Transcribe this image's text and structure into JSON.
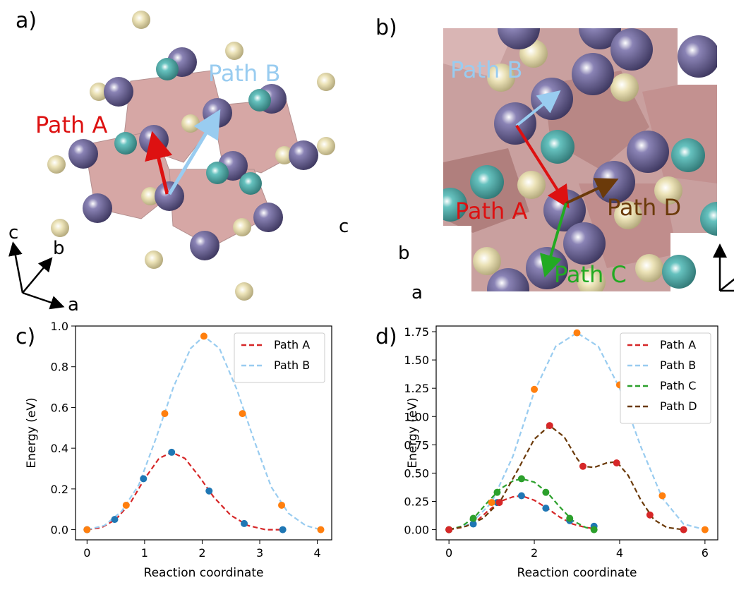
{
  "panels": {
    "a": {
      "label": "a)",
      "annotations": {
        "path_a": "Path A",
        "path_b": "Path B"
      },
      "axes": {
        "c": "c",
        "b": "b",
        "a": "a"
      },
      "colors": {
        "path_a": "#dd1111",
        "path_b": "#99ccf0"
      }
    },
    "b": {
      "label": "b)",
      "annotations": {
        "path_a": "Path A",
        "path_b": "Path B",
        "path_c": "Path C",
        "path_d": "Path D"
      },
      "axes": {
        "c": "c",
        "b": "b",
        "a": "a"
      },
      "colors": {
        "path_a": "#dd1111",
        "path_b": "#99ccf0",
        "path_c": "#22aa22",
        "path_d": "#6b3a0a"
      }
    },
    "c": {
      "label": "c)"
    },
    "d": {
      "label": "d)"
    }
  },
  "chart_data": [
    {
      "type": "line",
      "panel": "c",
      "xlabel": "Reaction coordinate",
      "ylabel": "Energy (eV)",
      "xlim": [
        -0.2,
        4.25
      ],
      "ylim": [
        -0.05,
        1.0
      ],
      "xticks": [
        0,
        1,
        2,
        3,
        4
      ],
      "yticks": [
        0.0,
        0.2,
        0.4,
        0.6,
        0.8,
        1.0
      ],
      "ytick_labels": [
        "0.0",
        "0.2",
        "0.4",
        "0.6",
        "0.8",
        "1.0"
      ],
      "legend_position": "top-right",
      "series": [
        {
          "name": "Path A",
          "color": "#d62728",
          "marker_color": "#1f77b4",
          "points_x": [
            0,
            0.48,
            0.98,
            1.47,
            2.12,
            2.73,
            3.4
          ],
          "points_y": [
            0,
            0.05,
            0.25,
            0.38,
            0.19,
            0.03,
            0.0
          ],
          "curve_x": [
            0,
            0.25,
            0.5,
            0.75,
            1.0,
            1.25,
            1.47,
            1.7,
            1.95,
            2.2,
            2.5,
            2.8,
            3.1,
            3.4
          ],
          "curve_y": [
            0,
            0.01,
            0.05,
            0.13,
            0.25,
            0.35,
            0.38,
            0.35,
            0.26,
            0.16,
            0.07,
            0.02,
            0.0,
            0.0
          ]
        },
        {
          "name": "Path B",
          "color": "#99ccf0",
          "marker_color": "#ff7f0e",
          "points_x": [
            0,
            0.68,
            1.35,
            2.03,
            2.7,
            3.38,
            4.06
          ],
          "points_y": [
            0,
            0.12,
            0.57,
            0.95,
            0.57,
            0.12,
            0.0
          ],
          "curve_x": [
            0,
            0.3,
            0.6,
            0.9,
            1.2,
            1.5,
            1.8,
            2.03,
            2.3,
            2.6,
            2.9,
            3.2,
            3.5,
            3.8,
            4.06
          ],
          "curve_y": [
            0,
            0.02,
            0.09,
            0.22,
            0.45,
            0.7,
            0.89,
            0.95,
            0.89,
            0.69,
            0.44,
            0.21,
            0.08,
            0.02,
            0.0
          ]
        }
      ]
    },
    {
      "type": "line",
      "panel": "d",
      "xlabel": "Reaction coordinate",
      "ylabel": "Energy (eV)",
      "xlim": [
        -0.3,
        6.3
      ],
      "ylim": [
        -0.09,
        1.8
      ],
      "xticks": [
        0,
        2,
        4,
        6
      ],
      "yticks": [
        0.0,
        0.25,
        0.5,
        0.75,
        1.0,
        1.25,
        1.5,
        1.75
      ],
      "ytick_labels": [
        "0.00",
        "0.25",
        "0.50",
        "0.75",
        "1.00",
        "1.25",
        "1.50",
        "1.75"
      ],
      "legend_position": "top-right",
      "series": [
        {
          "name": "Path A",
          "color": "#d62728",
          "marker_color": "#1f77b4",
          "points_x": [
            0,
            0.57,
            1.13,
            1.7,
            2.27,
            2.83,
            3.4
          ],
          "points_y": [
            0,
            0.05,
            0.24,
            0.3,
            0.19,
            0.08,
            0.03
          ],
          "curve_x": [
            0,
            0.3,
            0.6,
            0.9,
            1.2,
            1.5,
            1.7,
            2.0,
            2.3,
            2.6,
            2.9,
            3.2,
            3.4
          ],
          "curve_y": [
            0,
            0.02,
            0.06,
            0.16,
            0.25,
            0.29,
            0.3,
            0.26,
            0.19,
            0.11,
            0.05,
            0.02,
            0.01
          ]
        },
        {
          "name": "Path B",
          "color": "#99ccf0",
          "marker_color": "#ff7f0e",
          "points_x": [
            0,
            1.0,
            2.0,
            3.0,
            4.0,
            5.0,
            6.0
          ],
          "points_y": [
            0,
            0.24,
            1.24,
            1.74,
            1.28,
            0.3,
            0.0
          ],
          "curve_x": [
            0,
            0.5,
            1.0,
            1.5,
            2.0,
            2.5,
            3.0,
            3.5,
            4.0,
            4.5,
            5.0,
            5.5,
            6.0
          ],
          "curve_y": [
            0,
            0.05,
            0.24,
            0.65,
            1.22,
            1.62,
            1.74,
            1.62,
            1.25,
            0.73,
            0.28,
            0.05,
            0.0
          ]
        },
        {
          "name": "Path C",
          "color": "#2ca02c",
          "marker_color": "#2ca02c",
          "points_x": [
            0,
            0.57,
            1.13,
            1.7,
            2.27,
            2.83,
            3.4
          ],
          "points_y": [
            0,
            0.1,
            0.33,
            0.45,
            0.33,
            0.1,
            0.0
          ],
          "curve_x": [
            0,
            0.3,
            0.6,
            0.9,
            1.2,
            1.5,
            1.7,
            2.0,
            2.3,
            2.6,
            2.9,
            3.2,
            3.4
          ],
          "curve_y": [
            0,
            0.03,
            0.11,
            0.24,
            0.36,
            0.43,
            0.45,
            0.42,
            0.33,
            0.2,
            0.08,
            0.02,
            0.0
          ]
        },
        {
          "name": "Path D",
          "color": "#6b3a0a",
          "marker_color": "#d62728",
          "points_x": [
            0,
            1.18,
            2.36,
            3.14,
            3.93,
            4.71,
            5.5
          ],
          "points_y": [
            0,
            0.24,
            0.92,
            0.56,
            0.59,
            0.13,
            0.0
          ],
          "curve_x": [
            0,
            0.4,
            0.8,
            1.2,
            1.6,
            2.0,
            2.36,
            2.7,
            3.0,
            3.14,
            3.4,
            3.7,
            3.93,
            4.2,
            4.5,
            4.8,
            5.1,
            5.5
          ],
          "curve_y": [
            0,
            0.03,
            0.1,
            0.25,
            0.52,
            0.8,
            0.92,
            0.82,
            0.63,
            0.56,
            0.55,
            0.59,
            0.6,
            0.48,
            0.26,
            0.09,
            0.02,
            0.0
          ]
        }
      ]
    }
  ]
}
